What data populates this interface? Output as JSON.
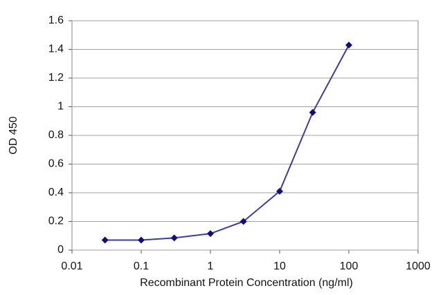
{
  "chart_data": {
    "type": "line",
    "xlabel": "Recombinant Protein Concentration (ng/ml)",
    "ylabel": "OD 450",
    "x": [
      0.03,
      0.1,
      0.3,
      1,
      3,
      10,
      30,
      100
    ],
    "values": [
      0.07,
      0.07,
      0.085,
      0.115,
      0.2,
      0.41,
      0.96,
      1.43
    ],
    "color": "#3a3aa8",
    "marker_color": "#10107a",
    "xscale": "log",
    "xlim": [
      0.01,
      1000
    ],
    "xticks": [
      0.01,
      0.1,
      1,
      10,
      100,
      1000
    ],
    "ylim": [
      0,
      1.6
    ],
    "yticks": [
      0,
      0.2,
      0.4,
      0.6,
      0.8,
      1,
      1.2,
      1.4,
      1.6
    ],
    "grid": true
  }
}
